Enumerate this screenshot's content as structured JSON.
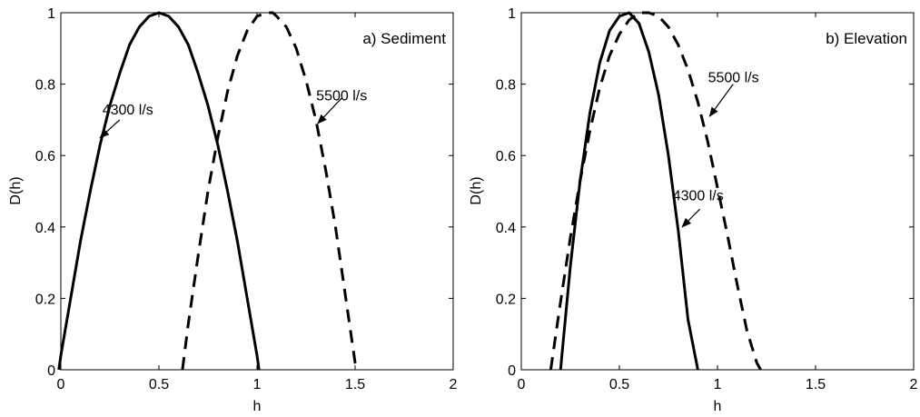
{
  "chart_data": [
    {
      "type": "line",
      "annotation_title": "a) Sediment",
      "xlabel": "h",
      "ylabel": "D(h)",
      "xlim": [
        0,
        2
      ],
      "ylim": [
        0,
        1
      ],
      "xticks": [
        "0",
        "0.5",
        "1",
        "1.5",
        "2"
      ],
      "yticks": [
        "0",
        "0.2",
        "0.4",
        "0.6",
        "0.8",
        "1"
      ],
      "grid": false,
      "series": [
        {
          "name": "4300 l/s",
          "style": "solid",
          "x": [
            -0.01,
            0.0,
            0.05,
            0.1,
            0.15,
            0.2,
            0.25,
            0.3,
            0.35,
            0.4,
            0.45,
            0.5,
            0.55,
            0.6,
            0.65,
            0.7,
            0.75,
            0.8,
            0.85,
            0.9,
            0.95,
            1.0,
            1.01
          ],
          "y": [
            0.0,
            0.04,
            0.2,
            0.36,
            0.5,
            0.63,
            0.74,
            0.83,
            0.91,
            0.96,
            0.99,
            1.0,
            0.99,
            0.96,
            0.91,
            0.83,
            0.74,
            0.63,
            0.5,
            0.36,
            0.2,
            0.04,
            0.0
          ]
        },
        {
          "name": "5500 l/s",
          "style": "dashed",
          "x": [
            0.62,
            0.65,
            0.7,
            0.75,
            0.8,
            0.85,
            0.9,
            0.95,
            1.0,
            1.05,
            1.08,
            1.1,
            1.15,
            1.2,
            1.25,
            1.3,
            1.35,
            1.4,
            1.45,
            1.5,
            1.52
          ],
          "y": [
            0.0,
            0.13,
            0.32,
            0.5,
            0.65,
            0.78,
            0.88,
            0.95,
            0.99,
            1.0,
            1.0,
            0.99,
            0.96,
            0.9,
            0.81,
            0.7,
            0.56,
            0.4,
            0.21,
            0.02,
            0.0
          ]
        }
      ],
      "annotations": [
        {
          "text": "4300 l/s",
          "text_at": [
            0.36,
            0.71
          ],
          "arrow_from": [
            0.3,
            0.7
          ],
          "arrow_to": [
            0.2,
            0.65
          ]
        },
        {
          "text": "5500 l/s",
          "text_at": [
            1.45,
            0.75
          ],
          "arrow_from": [
            1.43,
            0.76
          ],
          "arrow_to": [
            1.31,
            0.69
          ]
        }
      ]
    },
    {
      "type": "line",
      "annotation_title": "b) Elevation",
      "xlabel": "h",
      "ylabel": "D(h)",
      "xlim": [
        0,
        2
      ],
      "ylim": [
        0,
        1
      ],
      "xticks": [
        "0",
        "0.5",
        "1",
        "1.5",
        "2"
      ],
      "yticks": [
        "0",
        "0.2",
        "0.4",
        "0.6",
        "0.8",
        "1"
      ],
      "grid": false,
      "series": [
        {
          "name": "4300 l/s",
          "style": "solid",
          "x": [
            0.2,
            0.25,
            0.3,
            0.35,
            0.4,
            0.45,
            0.5,
            0.55,
            0.6,
            0.65,
            0.7,
            0.75,
            0.8,
            0.85,
            0.9
          ],
          "y": [
            0.0,
            0.29,
            0.53,
            0.72,
            0.86,
            0.95,
            0.99,
            1.0,
            0.97,
            0.89,
            0.77,
            0.6,
            0.39,
            0.14,
            0.0
          ]
        },
        {
          "name": "5500 l/s",
          "style": "dashed",
          "x": [
            0.15,
            0.2,
            0.25,
            0.3,
            0.35,
            0.4,
            0.45,
            0.5,
            0.55,
            0.6,
            0.65,
            0.7,
            0.75,
            0.8,
            0.85,
            0.9,
            0.95,
            1.0,
            1.05,
            1.1,
            1.15,
            1.2,
            1.22
          ],
          "y": [
            0.0,
            0.19,
            0.37,
            0.53,
            0.67,
            0.79,
            0.88,
            0.94,
            0.98,
            1.0,
            1.0,
            0.99,
            0.96,
            0.91,
            0.84,
            0.75,
            0.64,
            0.51,
            0.38,
            0.24,
            0.11,
            0.02,
            0.0
          ]
        }
      ],
      "annotations": [
        {
          "text": "5500 l/s",
          "text_at": [
            1.1,
            0.8
          ],
          "arrow_from": [
            1.08,
            0.8
          ],
          "arrow_to": [
            0.96,
            0.71
          ]
        },
        {
          "text": "4300 l/s",
          "text_at": [
            0.92,
            0.47
          ],
          "arrow_from": [
            0.91,
            0.45
          ],
          "arrow_to": [
            0.82,
            0.4
          ]
        }
      ]
    }
  ]
}
